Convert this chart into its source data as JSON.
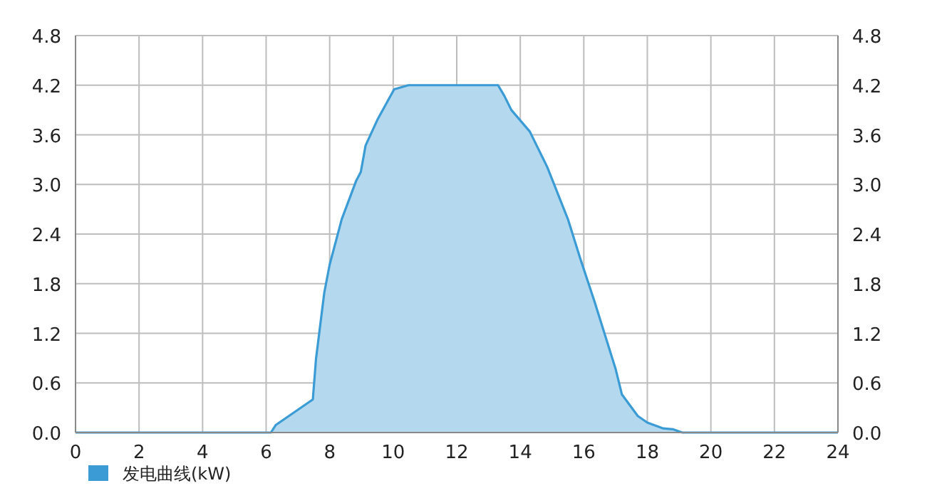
{
  "chart_data": {
    "type": "area",
    "xlim": [
      0,
      24
    ],
    "xticks": [
      0,
      2,
      4,
      6,
      8,
      10,
      12,
      14,
      16,
      18,
      20,
      22,
      24
    ],
    "ylim": [
      0,
      4.8
    ],
    "yticks": [
      {
        "value": 0,
        "label": "0.0"
      },
      {
        "value": 0.6,
        "label": "0.6"
      },
      {
        "value": 1.2,
        "label": "1.2"
      },
      {
        "value": 1.8,
        "label": "1.8"
      },
      {
        "value": 2.4,
        "label": "2.4"
      },
      {
        "value": 3,
        "label": "3.0"
      },
      {
        "value": 3.6,
        "label": "3.6"
      },
      {
        "value": 4.2,
        "label": "4.2"
      },
      {
        "value": 4.8,
        "label": "4.8"
      }
    ],
    "y2lim": [
      0,
      4.8
    ],
    "y2ticks": [
      {
        "value": 0,
        "label": "0.0"
      },
      {
        "value": 0.6,
        "label": "0.6"
      },
      {
        "value": 1.2,
        "label": "1.2"
      },
      {
        "value": 1.8,
        "label": "1.8"
      },
      {
        "value": 2.4,
        "label": "2.4"
      },
      {
        "value": 3,
        "label": "3.0"
      },
      {
        "value": 3.6,
        "label": "3.6"
      },
      {
        "value": 4.2,
        "label": "4.2"
      },
      {
        "value": 4.8,
        "label": "4.8"
      }
    ],
    "grid": true,
    "legend": "bottom left",
    "marker": "none",
    "series": [
      {
        "name": "发电曲线(kW)",
        "color": "#3a9bd5",
        "x": [
          0,
          6.15,
          6.3,
          7.47,
          7.57,
          7.83,
          8.0,
          8.38,
          8.83,
          8.98,
          9.13,
          9.5,
          10.03,
          10.48,
          13.3,
          13.5,
          13.72,
          14.3,
          14.85,
          15.5,
          15.9,
          16.34,
          17.0,
          17.2,
          17.7,
          18.0,
          18.5,
          18.8,
          19.1,
          24
        ],
        "values": [
          0,
          0,
          0.09,
          0.4,
          0.89,
          1.69,
          2.03,
          2.58,
          3.04,
          3.15,
          3.47,
          3.78,
          4.15,
          4.2,
          4.2,
          4.07,
          3.9,
          3.64,
          3.21,
          2.58,
          2.09,
          1.58,
          0.77,
          0.46,
          0.2,
          0.12,
          0.05,
          0.04,
          0,
          0
        ]
      }
    ]
  }
}
